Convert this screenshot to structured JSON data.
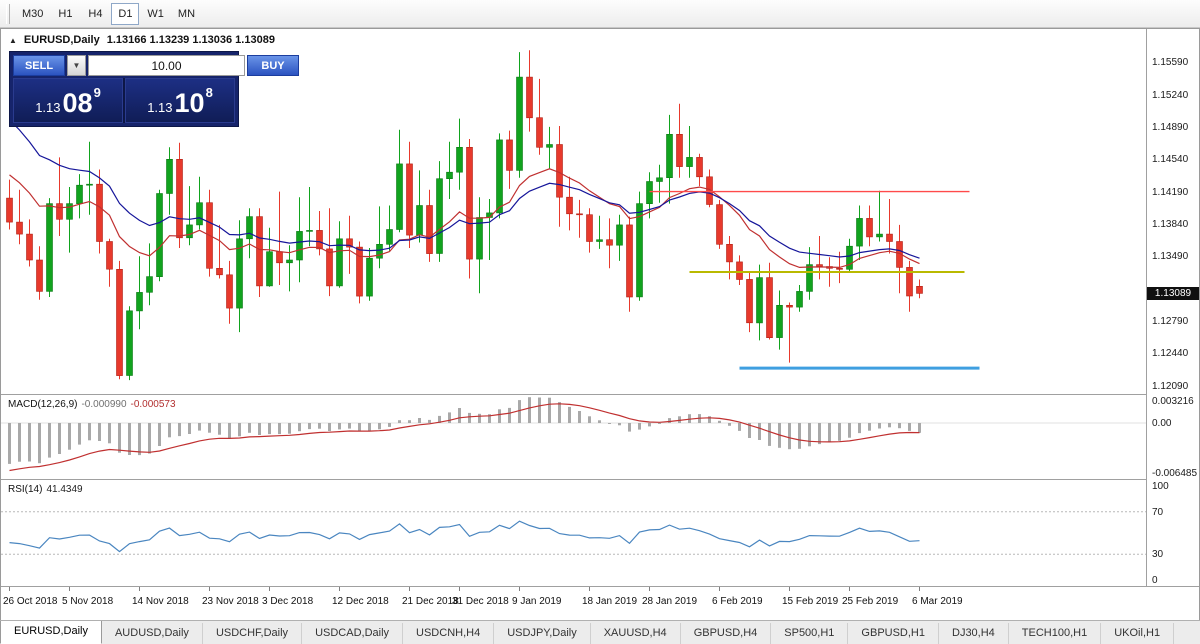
{
  "toolbar": {
    "timeframes": [
      {
        "label": "M30",
        "active": false
      },
      {
        "label": "H1",
        "active": false
      },
      {
        "label": "H4",
        "active": false
      },
      {
        "label": "D1",
        "active": true
      },
      {
        "label": "W1",
        "active": false
      },
      {
        "label": "MN",
        "active": false
      }
    ]
  },
  "icons": {
    "collapse": "▲",
    "dropdown": "▼"
  },
  "chart_header": {
    "symbol": "EURUSD,Daily",
    "ohlc": "1.13166 1.13239 1.13036 1.13089"
  },
  "trade_panel": {
    "sell_label": "SELL",
    "buy_label": "BUY",
    "volume": "10.00",
    "sell_price": {
      "small": "1.13",
      "big": "08",
      "sup": "9"
    },
    "buy_price": {
      "small": "1.13",
      "big": "10",
      "sup": "8"
    }
  },
  "price_axis": {
    "labels": [
      "1.15590",
      "1.15240",
      "1.14890",
      "1.14540",
      "1.14190",
      "1.13840",
      "1.13490",
      "1.12790",
      "1.12440",
      "1.12090"
    ],
    "current": "1.13089"
  },
  "indicators": {
    "macd": {
      "label": "MACD(12,26,9)",
      "value_main": "-0.000990",
      "value_signal": "-0.000573",
      "axis": [
        "0.003216",
        "0.00",
        "-0.006485"
      ]
    },
    "rsi": {
      "label": "RSI(14)",
      "value": "41.4349",
      "axis": [
        "100",
        "70",
        "30",
        "0"
      ]
    }
  },
  "time_axis": {
    "labels": [
      {
        "text": "26 Oct 2018",
        "index": 0
      },
      {
        "text": "5 Nov 2018",
        "index": 6
      },
      {
        "text": "14 Nov 2018",
        "index": 13
      },
      {
        "text": "23 Nov 2018",
        "index": 20
      },
      {
        "text": "3 Dec 2018",
        "index": 26
      },
      {
        "text": "12 Dec 2018",
        "index": 33
      },
      {
        "text": "21 Dec 2018",
        "index": 40
      },
      {
        "text": "31 Dec 2018",
        "index": 45
      },
      {
        "text": "9 Jan 2019",
        "index": 51
      },
      {
        "text": "18 Jan 2019",
        "index": 58
      },
      {
        "text": "28 Jan 2019",
        "index": 64
      },
      {
        "text": "6 Feb 2019",
        "index": 71
      },
      {
        "text": "15 Feb 2019",
        "index": 78
      },
      {
        "text": "25 Feb 2019",
        "index": 84
      },
      {
        "text": "6 Mar 2019",
        "index": 91
      }
    ]
  },
  "tabs": [
    {
      "label": "EURUSD,Daily",
      "active": true
    },
    {
      "label": "AUDUSD,Daily",
      "active": false
    },
    {
      "label": "USDCHF,Daily",
      "active": false
    },
    {
      "label": "USDCAD,Daily",
      "active": false
    },
    {
      "label": "USDCNH,H4",
      "active": false
    },
    {
      "label": "USDJPY,Daily",
      "active": false
    },
    {
      "label": "XAUUSD,H4",
      "active": false
    },
    {
      "label": "GBPUSD,H4",
      "active": false
    },
    {
      "label": "SP500,H1",
      "active": false
    },
    {
      "label": "GBPUSD,H1",
      "active": false
    },
    {
      "label": "DJ30,H4",
      "active": false
    },
    {
      "label": "TECH100,H1",
      "active": false
    },
    {
      "label": "UKOil,H1",
      "active": false
    }
  ],
  "chart_data": {
    "type": "candlestick",
    "symbol": "EURUSD",
    "timeframe": "Daily",
    "title": "EURUSD,Daily",
    "y_range": [
      1.12,
      1.1595
    ],
    "grid": false,
    "candles": [
      [
        1.1412,
        1.1432,
        1.1378,
        1.1386
      ],
      [
        1.1386,
        1.1421,
        1.1362,
        1.1373
      ],
      [
        1.1373,
        1.1389,
        1.1338,
        1.1345
      ],
      [
        1.1345,
        1.136,
        1.1302,
        1.1311
      ],
      [
        1.1311,
        1.1412,
        1.1305,
        1.1406
      ],
      [
        1.1406,
        1.1456,
        1.1371,
        1.1389
      ],
      [
        1.1389,
        1.1424,
        1.1353,
        1.1406
      ],
      [
        1.1406,
        1.1438,
        1.139,
        1.1426
      ],
      [
        1.1426,
        1.1473,
        1.1394,
        1.1427
      ],
      [
        1.1427,
        1.1443,
        1.1352,
        1.1365
      ],
      [
        1.1365,
        1.1368,
        1.1316,
        1.1335
      ],
      [
        1.1335,
        1.1344,
        1.1216,
        1.122
      ],
      [
        1.122,
        1.1295,
        1.1215,
        1.129
      ],
      [
        1.129,
        1.1349,
        1.127,
        1.131
      ],
      [
        1.131,
        1.1363,
        1.1296,
        1.1327
      ],
      [
        1.1327,
        1.1421,
        1.1322,
        1.1417
      ],
      [
        1.1417,
        1.1467,
        1.1394,
        1.1454
      ],
      [
        1.1454,
        1.1472,
        1.1358,
        1.1369
      ],
      [
        1.1369,
        1.1425,
        1.1361,
        1.1383
      ],
      [
        1.1383,
        1.1435,
        1.1378,
        1.1407
      ],
      [
        1.1407,
        1.1421,
        1.1327,
        1.1336
      ],
      [
        1.1336,
        1.1383,
        1.1325,
        1.1329
      ],
      [
        1.1329,
        1.1344,
        1.1276,
        1.1293
      ],
      [
        1.1293,
        1.1388,
        1.1267,
        1.1368
      ],
      [
        1.1368,
        1.1401,
        1.1347,
        1.1392
      ],
      [
        1.1392,
        1.1401,
        1.1305,
        1.1317
      ],
      [
        1.1317,
        1.138,
        1.1316,
        1.1354
      ],
      [
        1.1354,
        1.1419,
        1.1318,
        1.1342
      ],
      [
        1.1342,
        1.1361,
        1.1311,
        1.1345
      ],
      [
        1.1345,
        1.1413,
        1.1321,
        1.1376
      ],
      [
        1.1376,
        1.1424,
        1.136,
        1.1377
      ],
      [
        1.1377,
        1.1398,
        1.135,
        1.1357
      ],
      [
        1.1357,
        1.1401,
        1.1306,
        1.1317
      ],
      [
        1.1317,
        1.1387,
        1.1315,
        1.1368
      ],
      [
        1.1368,
        1.1393,
        1.133,
        1.1359
      ],
      [
        1.1359,
        1.1365,
        1.1298,
        1.1306
      ],
      [
        1.1306,
        1.1358,
        1.1301,
        1.1347
      ],
      [
        1.1347,
        1.1403,
        1.1336,
        1.1362
      ],
      [
        1.1362,
        1.1404,
        1.1355,
        1.1378
      ],
      [
        1.1378,
        1.1486,
        1.1375,
        1.1449
      ],
      [
        1.1449,
        1.1473,
        1.1358,
        1.1372
      ],
      [
        1.1372,
        1.1442,
        1.1364,
        1.1404
      ],
      [
        1.1404,
        1.1421,
        1.1343,
        1.1352
      ],
      [
        1.1352,
        1.1452,
        1.1343,
        1.1433
      ],
      [
        1.1433,
        1.1473,
        1.1411,
        1.144
      ],
      [
        1.144,
        1.1498,
        1.1421,
        1.1467
      ],
      [
        1.1467,
        1.1476,
        1.1325,
        1.1346
      ],
      [
        1.1346,
        1.1413,
        1.1309,
        1.1391
      ],
      [
        1.1391,
        1.1411,
        1.1345,
        1.1396
      ],
      [
        1.1396,
        1.1482,
        1.139,
        1.1475
      ],
      [
        1.1475,
        1.1485,
        1.1422,
        1.1442
      ],
      [
        1.1442,
        1.157,
        1.1434,
        1.1543
      ],
      [
        1.1543,
        1.1572,
        1.1484,
        1.1499
      ],
      [
        1.1499,
        1.1541,
        1.1459,
        1.1467
      ],
      [
        1.1467,
        1.1489,
        1.1444,
        1.147
      ],
      [
        1.147,
        1.149,
        1.1381,
        1.1413
      ],
      [
        1.1413,
        1.1435,
        1.1377,
        1.1395
      ],
      [
        1.1395,
        1.141,
        1.1369,
        1.1394
      ],
      [
        1.1394,
        1.1401,
        1.1353,
        1.1365
      ],
      [
        1.1365,
        1.1393,
        1.1357,
        1.1367
      ],
      [
        1.1367,
        1.139,
        1.1336,
        1.1361
      ],
      [
        1.1361,
        1.1394,
        1.1344,
        1.1383
      ],
      [
        1.1383,
        1.1392,
        1.1289,
        1.1305
      ],
      [
        1.1305,
        1.1419,
        1.1301,
        1.1406
      ],
      [
        1.1406,
        1.144,
        1.139,
        1.143
      ],
      [
        1.143,
        1.1448,
        1.1407,
        1.1434
      ],
      [
        1.1434,
        1.1502,
        1.1406,
        1.1481
      ],
      [
        1.1481,
        1.1514,
        1.1434,
        1.1446
      ],
      [
        1.1446,
        1.149,
        1.1434,
        1.1456
      ],
      [
        1.1456,
        1.146,
        1.1425,
        1.1435
      ],
      [
        1.1435,
        1.1443,
        1.1402,
        1.1405
      ],
      [
        1.1405,
        1.141,
        1.1357,
        1.1362
      ],
      [
        1.1362,
        1.1371,
        1.1324,
        1.1343
      ],
      [
        1.1343,
        1.135,
        1.1318,
        1.1324
      ],
      [
        1.1324,
        1.1331,
        1.1267,
        1.1277
      ],
      [
        1.1277,
        1.134,
        1.1258,
        1.1326
      ],
      [
        1.1326,
        1.1342,
        1.1259,
        1.1261
      ],
      [
        1.1261,
        1.1312,
        1.1248,
        1.1296
      ],
      [
        1.1296,
        1.1299,
        1.1234,
        1.1294
      ],
      [
        1.1294,
        1.1318,
        1.1289,
        1.1311
      ],
      [
        1.1311,
        1.1359,
        1.1302,
        1.134
      ],
      [
        1.134,
        1.1371,
        1.1324,
        1.1338
      ],
      [
        1.1338,
        1.1348,
        1.1316,
        1.1336
      ],
      [
        1.1336,
        1.1354,
        1.132,
        1.1335
      ],
      [
        1.1335,
        1.1368,
        1.1331,
        1.136
      ],
      [
        1.136,
        1.1404,
        1.1345,
        1.139
      ],
      [
        1.139,
        1.1404,
        1.136,
        1.137
      ],
      [
        1.137,
        1.142,
        1.1365,
        1.1373
      ],
      [
        1.1373,
        1.1411,
        1.1352,
        1.1365
      ],
      [
        1.1365,
        1.1383,
        1.1309,
        1.1337
      ],
      [
        1.1337,
        1.1344,
        1.1289,
        1.1306
      ],
      [
        1.13166,
        1.13239,
        1.13036,
        1.13089
      ]
    ],
    "moving_averages": [
      {
        "name": "ma-fast",
        "period": 14,
        "color": "#c03030",
        "start": 1.1445
      },
      {
        "name": "ma-slow",
        "period": 21,
        "color": "#16169a",
        "start": 1.1508
      }
    ],
    "lines": [
      {
        "name": "resistance",
        "price": 1.1419,
        "i1": 64,
        "i2": 96,
        "color": "#ff4a4a",
        "width": 1.4
      },
      {
        "name": "pivot",
        "price": 1.1332,
        "i1": 68,
        "i2": 95.5,
        "color": "#b9b900",
        "width": 2
      },
      {
        "name": "support",
        "price": 1.1228,
        "i1": 73,
        "i2": 97,
        "color": "#3f9fe0",
        "width": 3
      }
    ],
    "macd": {
      "range": [
        -0.0066,
        0.0033
      ],
      "seed_main": -0.0052,
      "seed_signal": -0.0058,
      "current_main": -0.00099,
      "current_signal": -0.000573
    },
    "rsi": {
      "range": [
        0,
        100
      ],
      "levels": [
        70,
        30
      ],
      "seed_avg_gain": 0.0018,
      "seed_avg_loss": 0.0026,
      "current": 41.4349
    },
    "colors": {
      "up": "#11a31e",
      "up_border": "#0b7a14",
      "down": "#e8392c",
      "down_border": "#b02014",
      "macd_hist": "#a9a9a9",
      "macd_signal": "#c03030",
      "rsi": "#4a86c0"
    }
  }
}
